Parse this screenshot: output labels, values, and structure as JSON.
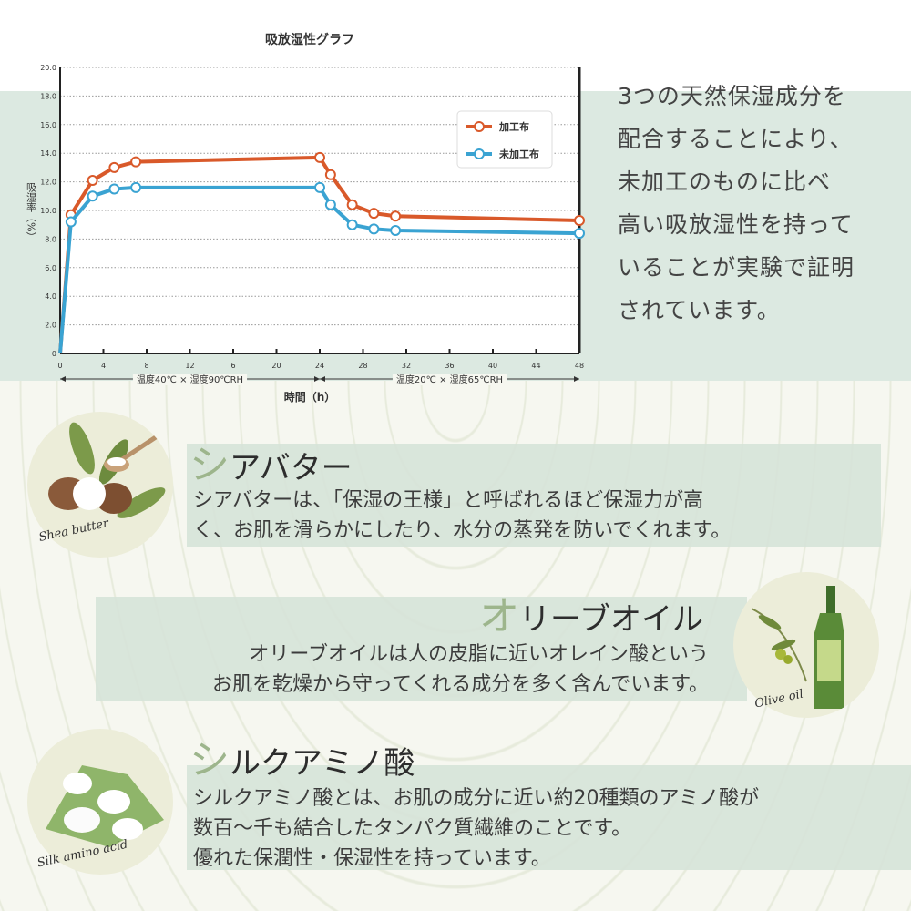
{
  "chart_data": {
    "type": "line",
    "title": "吸放湿性グラフ",
    "ylabel": "吸湿率（%）",
    "xlabel": "時間（h）",
    "ylim": [
      0,
      20
    ],
    "xlim": [
      0,
      48
    ],
    "yticks": [
      "0",
      "2.0",
      "4.0",
      "6.0",
      "8.0",
      "10.0",
      "12.0",
      "14.0",
      "16.0",
      "18.0",
      "20.0"
    ],
    "xticks": [
      "0",
      "4",
      "8",
      "12",
      "6",
      "20",
      "24",
      "28",
      "32",
      "36",
      "40",
      "44",
      "48"
    ],
    "grid": true,
    "legend_position": "top-right",
    "x": [
      0,
      1,
      3,
      5,
      7,
      24,
      25,
      27,
      29,
      31,
      48
    ],
    "series": [
      {
        "name": "加工布",
        "color": "#d9592a",
        "values": [
          0,
          9.7,
          12.1,
          13.0,
          13.4,
          13.7,
          12.5,
          10.4,
          9.8,
          9.6,
          9.3
        ]
      },
      {
        "name": "未加工布",
        "color": "#3aa3d2",
        "values": [
          0,
          9.2,
          11.0,
          11.5,
          11.6,
          11.6,
          10.4,
          9.0,
          8.7,
          8.6,
          8.4
        ]
      }
    ],
    "annotations": [
      "温度40℃ × 湿度90℃RH",
      "温度20℃ × 湿度65℃RH"
    ]
  },
  "intro": {
    "lines": [
      "3つの天然保湿成分を",
      "配合することにより、",
      "未加工のものに比べ",
      "高い吸放湿性を持って",
      "いることが実験で証明",
      "されています。"
    ]
  },
  "shea": {
    "title_first": "シ",
    "title_rest": "アバター",
    "script": "Shea butter",
    "lines": [
      "シアバターは、「保湿の王様」と呼ばれるほど保湿力が高",
      "く、お肌を滑らかにしたり、水分の蒸発を防いでくれます。"
    ]
  },
  "olive": {
    "title_first": "オ",
    "title_rest": "リーブオイル",
    "script": "Olive oil",
    "lines": [
      "オリーブオイルは人の皮脂に近いオレイン酸という",
      "お肌を乾燥から守ってくれる成分を多く含んでいます。"
    ]
  },
  "silk": {
    "title_first": "シ",
    "title_rest": "ルクアミノ酸",
    "script": "Silk amino acid",
    "lines": [
      "シルクアミノ酸とは、お肌の成分に近い約20種類のアミノ酸が",
      "数百～千も結合したタンパク質繊維のことです。",
      "優れた保潤性・保湿性を持っています。"
    ]
  },
  "colors": {
    "accent": "#9db58c",
    "band": "#d6e3d8",
    "orange": "#d9592a",
    "blue": "#3aa3d2"
  }
}
